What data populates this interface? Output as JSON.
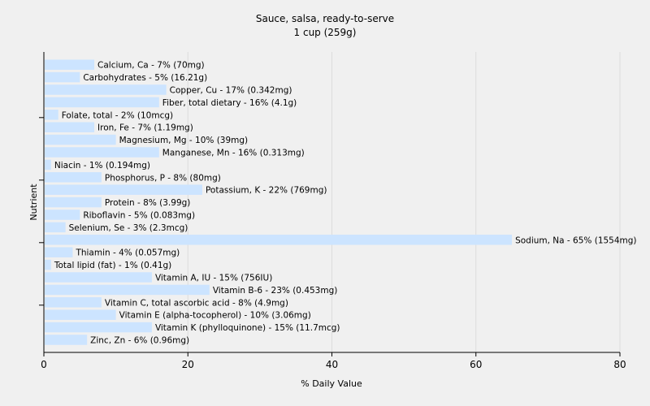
{
  "chart_data": {
    "type": "bar",
    "orientation": "horizontal",
    "title": "Sauce, salsa, ready-to-serve",
    "subtitle": "1 cup (259g)",
    "xlabel": "% Daily Value",
    "ylabel": "Nutrient",
    "xlim": [
      0,
      80
    ],
    "xticks": [
      0,
      20,
      40,
      60,
      80
    ],
    "grid": true,
    "bar_color": "#cce4ff",
    "categories": [
      "Calcium, Ca",
      "Carbohydrates",
      "Copper, Cu",
      "Fiber, total dietary",
      "Folate, total",
      "Iron, Fe",
      "Magnesium, Mg",
      "Manganese, Mn",
      "Niacin",
      "Phosphorus, P",
      "Potassium, K",
      "Protein",
      "Riboflavin",
      "Selenium, Se",
      "Sodium, Na",
      "Thiamin",
      "Total lipid (fat)",
      "Vitamin A, IU",
      "Vitamin B-6",
      "Vitamin C, total ascorbic acid",
      "Vitamin E (alpha-tocopherol)",
      "Vitamin K (phylloquinone)",
      "Zinc, Zn"
    ],
    "values": [
      7,
      5,
      17,
      16,
      2,
      7,
      10,
      16,
      1,
      8,
      22,
      8,
      5,
      3,
      65,
      4,
      1,
      15,
      23,
      8,
      10,
      15,
      6
    ],
    "data_labels": [
      "Calcium, Ca - 7% (70mg)",
      "Carbohydrates - 5% (16.21g)",
      "Copper, Cu - 17% (0.342mg)",
      "Fiber, total dietary - 16% (4.1g)",
      "Folate, total - 2% (10mcg)",
      "Iron, Fe - 7% (1.19mg)",
      "Magnesium, Mg - 10% (39mg)",
      "Manganese, Mn - 16% (0.313mg)",
      "Niacin - 1% (0.194mg)",
      "Phosphorus, P - 8% (80mg)",
      "Potassium, K - 22% (769mg)",
      "Protein - 8% (3.99g)",
      "Riboflavin - 5% (0.083mg)",
      "Selenium, Se - 3% (2.3mcg)",
      "Sodium, Na - 65% (1554mg)",
      "Thiamin - 4% (0.057mg)",
      "Total lipid (fat) - 1% (0.41g)",
      "Vitamin A, IU - 15% (756IU)",
      "Vitamin B-6 - 23% (0.453mg)",
      "Vitamin C, total ascorbic acid - 8% (4.9mg)",
      "Vitamin E (alpha-tocopherol) - 10% (3.06mg)",
      "Vitamin K (phylloquinone) - 15% (11.7mcg)",
      "Zinc, Zn - 6% (0.96mg)"
    ]
  }
}
